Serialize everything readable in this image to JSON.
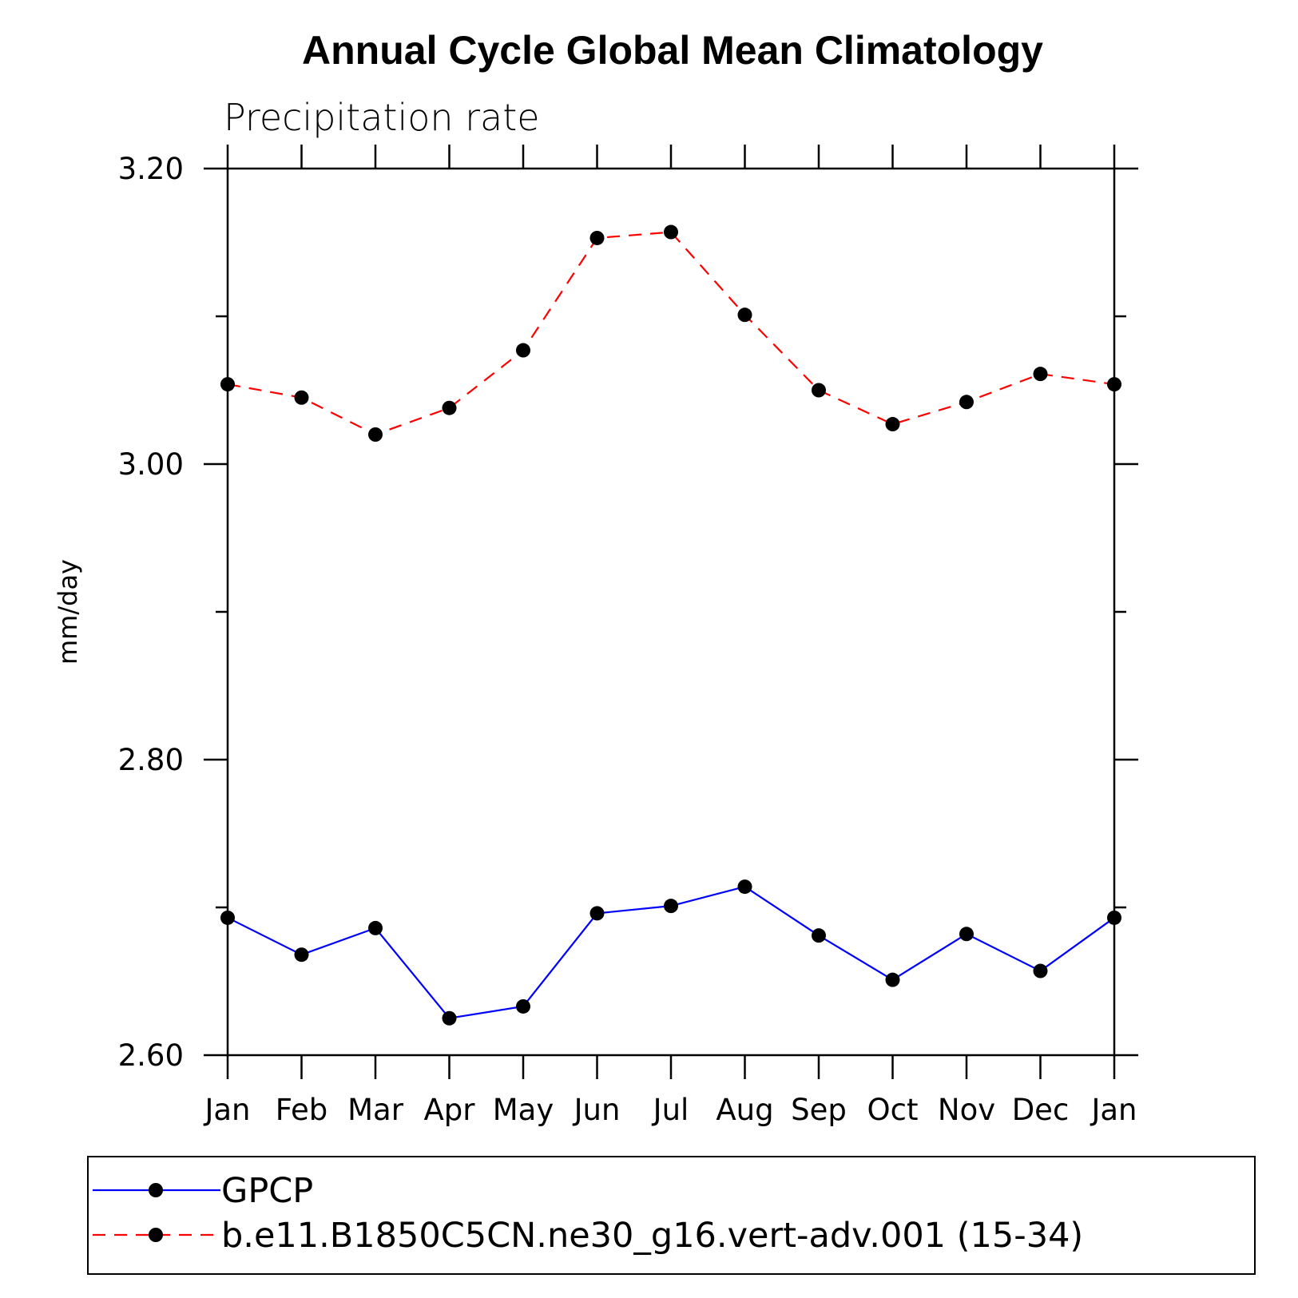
{
  "chart_data": {
    "type": "line",
    "title": "Annual Cycle Global Mean Climatology",
    "subtitle": "Precipitation rate",
    "xlabel": "",
    "ylabel": "mm/day",
    "categories": [
      "Jan",
      "Feb",
      "Mar",
      "Apr",
      "May",
      "Jun",
      "Jul",
      "Aug",
      "Sep",
      "Oct",
      "Nov",
      "Dec",
      "Jan"
    ],
    "ylim": [
      2.6,
      3.2
    ],
    "yticks": [
      "2.60",
      "2.80",
      "3.00",
      "3.20"
    ],
    "ytick_values": [
      2.6,
      2.8,
      3.0,
      3.2
    ],
    "grid": false,
    "legend_placement": "bottom",
    "series": [
      {
        "name": "GPCP",
        "color": "#0000ff",
        "line_style": "solid",
        "marker": "filled-circle",
        "values": [
          2.693,
          2.668,
          2.686,
          2.625,
          2.633,
          2.696,
          2.701,
          2.714,
          2.681,
          2.651,
          2.682,
          2.657,
          2.693
        ]
      },
      {
        "name": "b.e11.B1850C5CN.ne30_g16.vert-adv.001 (15-34)",
        "color": "#ff0000",
        "line_style": "dashed",
        "marker": "filled-circle",
        "values": [
          3.054,
          3.045,
          3.02,
          3.038,
          3.077,
          3.153,
          3.157,
          3.101,
          3.05,
          3.027,
          3.042,
          3.061,
          3.054
        ]
      }
    ]
  }
}
